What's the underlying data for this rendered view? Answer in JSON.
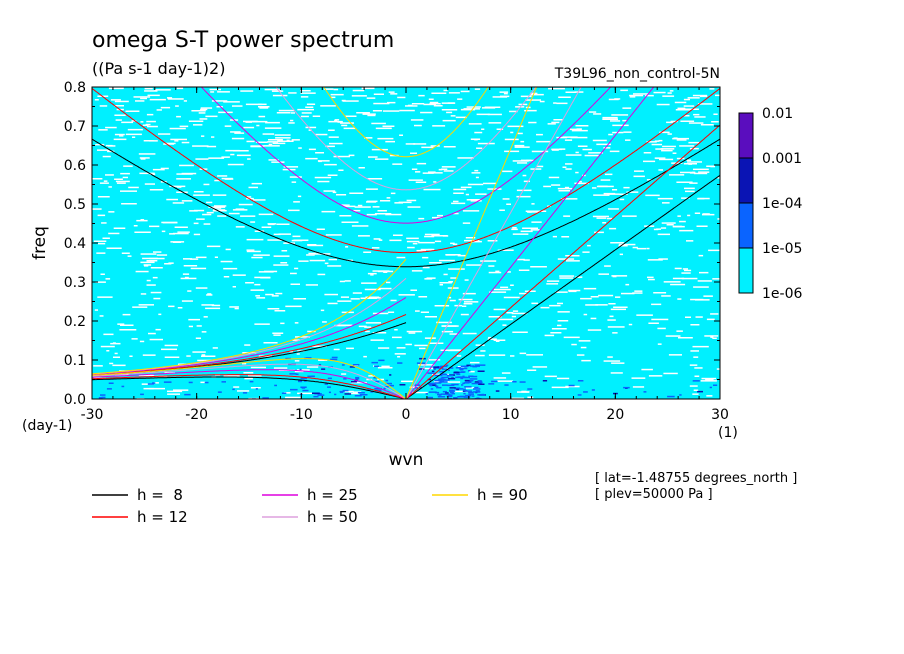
{
  "chart_data": {
    "type": "heatmap",
    "title": "omega S-T power spectrum",
    "subtitle": "((Pa s-1 day-1)2)",
    "run_label": "T39L96_non_control-5N",
    "xlabel": "wvn",
    "ylabel": "freq",
    "x_unit": "(1)",
    "y_unit": "(day-1)",
    "xlim": [
      -30,
      30
    ],
    "ylim": [
      0,
      0.8
    ],
    "x_ticks": [
      -30,
      -20,
      -10,
      0,
      10,
      20,
      30
    ],
    "y_ticks": [
      0.0,
      0.1,
      0.2,
      0.3,
      0.4,
      0.5,
      0.6,
      0.7,
      0.8
    ],
    "x_tick_labels": [
      "-30",
      "-20",
      "-10",
      "0",
      "10",
      "20",
      "30"
    ],
    "y_tick_labels": [
      "0.0",
      "0.1",
      "0.2",
      "0.3",
      "0.4",
      "0.5",
      "0.6",
      "0.7",
      "0.8"
    ],
    "colorbar": {
      "labels": [
        "0.01",
        "0.001",
        "1e-04",
        "1e-05",
        "1e-06"
      ],
      "colors": [
        "#5a0dbe",
        "#0a14b4",
        "#0a64ff",
        "#00f0ff"
      ]
    },
    "background_color": "#00f0ff",
    "gap_color": "#ffffff",
    "legend": [
      {
        "label": "h =  8",
        "color": "#000000",
        "h": 8
      },
      {
        "label": "h = 12",
        "color": "#ff0000",
        "h": 12
      },
      {
        "label": "h = 25",
        "color": "#dd00dd",
        "h": 25
      },
      {
        "label": "h = 50",
        "color": "#dda0dd",
        "h": 50
      },
      {
        "label": "h = 90",
        "color": "#ffd700",
        "h": 90
      }
    ],
    "info_lines": [
      "[ lat=-1.48755 degrees_north ]",
      "[ plev=50000 Pa ]"
    ]
  }
}
